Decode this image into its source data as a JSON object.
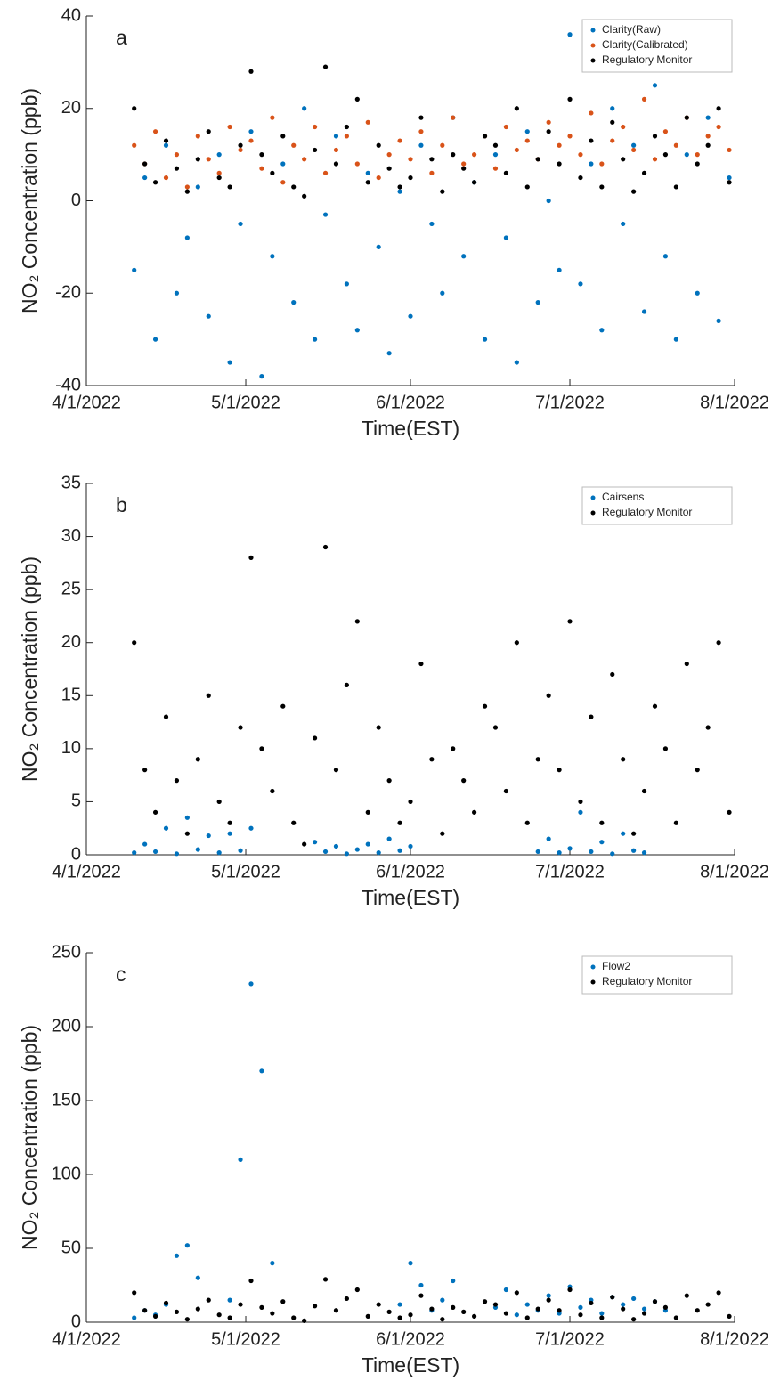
{
  "chart_data": [
    {
      "type": "scatter",
      "annotation": "a",
      "xlabel": "Time(EST)",
      "ylabel": "NO₂ Concentration (ppb)",
      "legend": "upper right",
      "xlim": [
        "4/1/2022",
        "8/1/2022"
      ],
      "xticks": [
        "4/1/2022",
        "5/1/2022",
        "6/1/2022",
        "7/1/2022",
        "8/1/2022"
      ],
      "ylim": [
        -40,
        40
      ],
      "yticks": [
        -40,
        -20,
        0,
        20,
        40
      ],
      "x": [
        "4/10/2022",
        "4/12/2022",
        "4/14/2022",
        "4/16/2022",
        "4/18/2022",
        "4/20/2022",
        "4/22/2022",
        "4/24/2022",
        "4/26/2022",
        "4/28/2022",
        "4/30/2022",
        "5/2/2022",
        "5/4/2022",
        "5/6/2022",
        "5/8/2022",
        "5/10/2022",
        "5/12/2022",
        "5/14/2022",
        "5/16/2022",
        "5/18/2022",
        "5/20/2022",
        "5/22/2022",
        "5/24/2022",
        "5/26/2022",
        "5/28/2022",
        "5/30/2022",
        "6/1/2022",
        "6/3/2022",
        "6/5/2022",
        "6/7/2022",
        "6/9/2022",
        "6/11/2022",
        "6/13/2022",
        "6/15/2022",
        "6/17/2022",
        "6/19/2022",
        "6/21/2022",
        "6/23/2022",
        "6/25/2022",
        "6/27/2022",
        "6/29/2022",
        "7/1/2022",
        "7/3/2022",
        "7/5/2022",
        "7/7/2022",
        "7/9/2022",
        "7/11/2022",
        "7/13/2022",
        "7/15/2022",
        "7/17/2022",
        "7/19/2022",
        "7/21/2022",
        "7/23/2022",
        "7/25/2022",
        "7/27/2022",
        "7/29/2022",
        "7/31/2022"
      ],
      "series": [
        {
          "name": "Clarity(Raw)",
          "color": "#0072bd",
          "values": [
            -15,
            5,
            -30,
            12,
            -20,
            -8,
            3,
            -25,
            10,
            -35,
            -5,
            15,
            -38,
            -12,
            8,
            -22,
            20,
            -30,
            -3,
            14,
            -18,
            -28,
            6,
            -10,
            -33,
            2,
            -25,
            12,
            -5,
            -20,
            18,
            -12,
            4,
            -30,
            10,
            -8,
            -35,
            15,
            -22,
            0,
            -15,
            36,
            -18,
            8,
            -28,
            20,
            -5,
            12,
            -24,
            25,
            -12,
            -30,
            10,
            -20,
            18,
            -26,
            5
          ]
        },
        {
          "name": "Clarity(Calibrated)",
          "color": "#d95319",
          "values": [
            12,
            8,
            15,
            5,
            10,
            3,
            14,
            9,
            6,
            16,
            11,
            13,
            7,
            18,
            4,
            12,
            9,
            16,
            6,
            11,
            14,
            8,
            17,
            5,
            10,
            13,
            9,
            15,
            6,
            12,
            18,
            8,
            10,
            14,
            7,
            16,
            11,
            13,
            9,
            17,
            12,
            14,
            10,
            19,
            8,
            13,
            16,
            11,
            22,
            9,
            15,
            12,
            18,
            10,
            14,
            16,
            11
          ]
        },
        {
          "name": "Regulatory Monitor",
          "color": "#000000",
          "values": [
            20,
            8,
            4,
            13,
            7,
            2,
            9,
            15,
            5,
            3,
            12,
            28,
            10,
            6,
            14,
            3,
            1,
            11,
            29,
            8,
            16,
            22,
            4,
            12,
            7,
            3,
            5,
            18,
            9,
            2,
            10,
            7,
            4,
            14,
            12,
            6,
            20,
            3,
            9,
            15,
            8,
            22,
            5,
            13,
            3,
            17,
            9,
            2,
            6,
            14,
            10,
            3,
            18,
            8,
            12,
            20,
            4
          ]
        }
      ]
    },
    {
      "type": "scatter",
      "annotation": "b",
      "xlabel": "Time(EST)",
      "ylabel": "NO₂ Concentration (ppb)",
      "legend": "upper right",
      "xlim": [
        "4/1/2022",
        "8/1/2022"
      ],
      "xticks": [
        "4/1/2022",
        "5/1/2022",
        "6/1/2022",
        "7/1/2022",
        "8/1/2022"
      ],
      "ylim": [
        0,
        35
      ],
      "yticks": [
        0,
        5,
        10,
        15,
        20,
        25,
        30,
        35
      ],
      "x": [
        "4/10/2022",
        "4/12/2022",
        "4/14/2022",
        "4/16/2022",
        "4/18/2022",
        "4/20/2022",
        "4/22/2022",
        "4/24/2022",
        "4/26/2022",
        "4/28/2022",
        "4/30/2022",
        "5/2/2022",
        "5/4/2022",
        "5/6/2022",
        "5/8/2022",
        "5/10/2022",
        "5/12/2022",
        "5/14/2022",
        "5/16/2022",
        "5/18/2022",
        "5/20/2022",
        "5/22/2022",
        "5/24/2022",
        "5/26/2022",
        "5/28/2022",
        "5/30/2022",
        "6/1/2022",
        "6/3/2022",
        "6/5/2022",
        "6/7/2022",
        "6/9/2022",
        "6/11/2022",
        "6/13/2022",
        "6/15/2022",
        "6/17/2022",
        "6/19/2022",
        "6/21/2022",
        "6/23/2022",
        "6/25/2022",
        "6/27/2022",
        "6/29/2022",
        "7/1/2022",
        "7/3/2022",
        "7/5/2022",
        "7/7/2022",
        "7/9/2022",
        "7/11/2022",
        "7/13/2022",
        "7/15/2022",
        "7/17/2022",
        "7/19/2022",
        "7/21/2022",
        "7/23/2022",
        "7/25/2022",
        "7/27/2022",
        "7/29/2022",
        "7/31/2022"
      ],
      "series": [
        {
          "name": "Cairsens",
          "color": "#0072bd",
          "values": [
            0.2,
            1,
            0.3,
            2.5,
            0.1,
            3.5,
            0.5,
            1.8,
            0.2,
            2,
            0.4,
            2.5,
            null,
            null,
            null,
            null,
            null,
            1.2,
            0.3,
            0.8,
            0.1,
            0.5,
            1,
            0.2,
            1.5,
            0.4,
            0.8,
            null,
            null,
            null,
            null,
            null,
            null,
            null,
            null,
            null,
            null,
            null,
            0.3,
            1.5,
            0.2,
            0.6,
            4,
            0.3,
            1.2,
            0.1,
            2,
            0.4,
            0.2,
            null,
            null,
            null,
            null,
            null,
            null,
            null,
            null
          ]
        },
        {
          "name": "Regulatory Monitor",
          "color": "#000000",
          "values": [
            20,
            8,
            4,
            13,
            7,
            2,
            9,
            15,
            5,
            3,
            12,
            28,
            10,
            6,
            14,
            3,
            1,
            11,
            29,
            8,
            16,
            22,
            4,
            12,
            7,
            3,
            5,
            18,
            9,
            2,
            10,
            7,
            4,
            14,
            12,
            6,
            20,
            3,
            9,
            15,
            8,
            22,
            5,
            13,
            3,
            17,
            9,
            2,
            6,
            14,
            10,
            3,
            18,
            8,
            12,
            20,
            4
          ]
        }
      ]
    },
    {
      "type": "scatter",
      "annotation": "c",
      "xlabel": "Time(EST)",
      "ylabel": "NO₂ Concentration (ppb)",
      "legend": "upper right",
      "xlim": [
        "4/1/2022",
        "8/1/2022"
      ],
      "xticks": [
        "4/1/2022",
        "5/1/2022",
        "6/1/2022",
        "7/1/2022",
        "8/1/2022"
      ],
      "ylim": [
        0,
        250
      ],
      "yticks": [
        0,
        50,
        100,
        150,
        200,
        250
      ],
      "x": [
        "4/10/2022",
        "4/12/2022",
        "4/14/2022",
        "4/16/2022",
        "4/18/2022",
        "4/20/2022",
        "4/22/2022",
        "4/24/2022",
        "4/26/2022",
        "4/28/2022",
        "4/30/2022",
        "5/2/2022",
        "5/4/2022",
        "5/6/2022",
        "5/8/2022",
        "5/10/2022",
        "5/12/2022",
        "5/14/2022",
        "5/16/2022",
        "5/18/2022",
        "5/20/2022",
        "5/22/2022",
        "5/24/2022",
        "5/26/2022",
        "5/28/2022",
        "5/30/2022",
        "6/1/2022",
        "6/3/2022",
        "6/5/2022",
        "6/7/2022",
        "6/9/2022",
        "6/11/2022",
        "6/13/2022",
        "6/15/2022",
        "6/17/2022",
        "6/19/2022",
        "6/21/2022",
        "6/23/2022",
        "6/25/2022",
        "6/27/2022",
        "6/29/2022",
        "7/1/2022",
        "7/3/2022",
        "7/5/2022",
        "7/7/2022",
        "7/9/2022",
        "7/11/2022",
        "7/13/2022",
        "7/15/2022",
        "7/17/2022",
        "7/19/2022",
        "7/21/2022",
        "7/23/2022",
        "7/25/2022",
        "7/27/2022",
        "7/29/2022",
        "7/31/2022"
      ],
      "series": [
        {
          "name": "Flow2",
          "color": "#0072bd",
          "values": [
            3,
            8,
            5,
            12,
            45,
            52,
            30,
            null,
            null,
            15,
            110,
            229,
            170,
            40,
            null,
            null,
            null,
            null,
            null,
            null,
            null,
            null,
            null,
            null,
            null,
            12,
            40,
            25,
            8,
            15,
            28,
            null,
            null,
            null,
            10,
            22,
            5,
            12,
            8,
            18,
            6,
            24,
            10,
            15,
            6,
            17,
            12,
            16,
            9,
            14,
            8,
            null,
            null,
            null,
            null,
            null,
            null
          ]
        },
        {
          "name": "Regulatory Monitor",
          "color": "#000000",
          "values": [
            20,
            8,
            4,
            13,
            7,
            2,
            9,
            15,
            5,
            3,
            12,
            28,
            10,
            6,
            14,
            3,
            1,
            11,
            29,
            8,
            16,
            22,
            4,
            12,
            7,
            3,
            5,
            18,
            9,
            2,
            10,
            7,
            4,
            14,
            12,
            6,
            20,
            3,
            9,
            15,
            8,
            22,
            5,
            13,
            3,
            17,
            9,
            2,
            6,
            14,
            10,
            3,
            18,
            8,
            12,
            20,
            4
          ]
        }
      ]
    }
  ]
}
